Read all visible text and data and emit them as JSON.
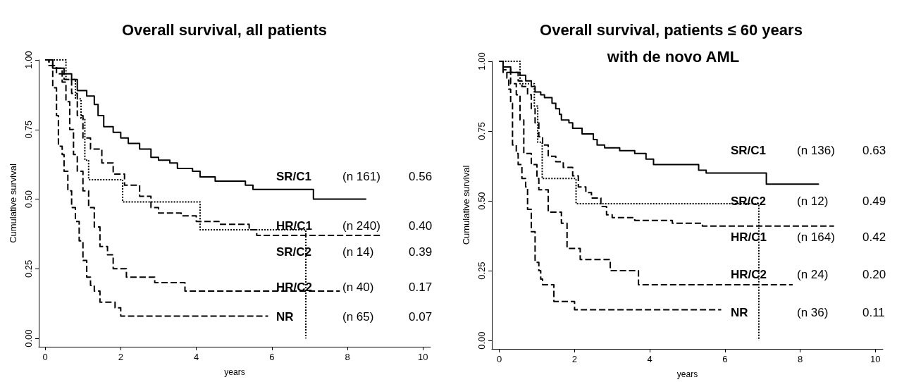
{
  "chart_data": [
    {
      "type": "step",
      "title": "Overall survival, all patients",
      "xlabel": "years",
      "ylabel": "Cumulative survival",
      "xlim": [
        -0.17,
        10.2
      ],
      "ylim": [
        -0.03,
        1.0
      ],
      "xticks": [
        0,
        2,
        4,
        6,
        8,
        10
      ],
      "yticks": [
        {
          "value": 0,
          "label": "0.00"
        },
        {
          "value": 0.25,
          "label": "0.25"
        },
        {
          "value": 0.5,
          "label": "0.50"
        },
        {
          "value": 0.75,
          "label": "0.75"
        },
        {
          "value": 1,
          "label": "1.00"
        }
      ],
      "grid": false,
      "legend": false,
      "marker": "none",
      "series": [
        {
          "name": "SR/C1",
          "color": "#000000",
          "line_style": "solid",
          "x": [
            0,
            0.2,
            0.5,
            0.7,
            0.85,
            1.1,
            1.3,
            1.4,
            1.55,
            1.8,
            2.0,
            2.2,
            2.5,
            2.8,
            3.0,
            3.3,
            3.5,
            3.9,
            4.1,
            4.5,
            5.3,
            5.5,
            7.1,
            8.5
          ],
          "values": [
            1,
            0.97,
            0.95,
            0.93,
            0.89,
            0.87,
            0.84,
            0.8,
            0.76,
            0.74,
            0.72,
            0.7,
            0.68,
            0.65,
            0.64,
            0.63,
            0.61,
            0.6,
            0.58,
            0.565,
            0.55,
            0.535,
            0.5,
            0.5
          ]
        },
        {
          "name": "HR/C1",
          "color": "#000000",
          "line_style": "dashed",
          "x": [
            0,
            0.1,
            0.3,
            0.5,
            0.7,
            0.85,
            1.0,
            1.2,
            1.5,
            1.8,
            2.1,
            2.5,
            2.8,
            3.0,
            3.6,
            4.0,
            4.6,
            5.4,
            5.6,
            8.9
          ],
          "values": [
            1,
            0.98,
            0.95,
            0.93,
            0.88,
            0.8,
            0.72,
            0.68,
            0.63,
            0.59,
            0.55,
            0.51,
            0.47,
            0.45,
            0.44,
            0.42,
            0.41,
            0.39,
            0.37,
            0.37
          ]
        },
        {
          "name": "SR/C2",
          "color": "#000000",
          "line_style": "dotted",
          "x": [
            0,
            0.55,
            0.8,
            0.95,
            1.05,
            1.15,
            2.05,
            4.1,
            6.9
          ],
          "values": [
            1,
            0.93,
            0.86,
            0.79,
            0.64,
            0.57,
            0.49,
            0.39,
            0
          ]
        },
        {
          "name": "HR/C2",
          "color": "#000000",
          "line_style": "dashed",
          "x": [
            0,
            0.2,
            0.45,
            0.55,
            0.65,
            0.75,
            0.85,
            1.0,
            1.15,
            1.3,
            1.45,
            1.65,
            1.8,
            2.15,
            2.9,
            3.7,
            7.8
          ],
          "values": [
            1,
            0.97,
            0.92,
            0.85,
            0.75,
            0.66,
            0.6,
            0.53,
            0.47,
            0.4,
            0.33,
            0.3,
            0.25,
            0.22,
            0.2,
            0.17,
            0.17
          ]
        },
        {
          "name": "NR",
          "color": "#000000",
          "line_style": "dashed",
          "x": [
            0,
            0.1,
            0.2,
            0.3,
            0.35,
            0.45,
            0.5,
            0.6,
            0.7,
            0.8,
            0.9,
            1.0,
            1.1,
            1.2,
            1.3,
            1.45,
            1.85,
            2.0,
            5.9
          ],
          "values": [
            1,
            0.98,
            0.9,
            0.8,
            0.69,
            0.66,
            0.6,
            0.53,
            0.47,
            0.42,
            0.35,
            0.28,
            0.22,
            0.19,
            0.17,
            0.13,
            0.11,
            0.08,
            0.08
          ]
        }
      ],
      "annotations": [
        "(n 161)",
        "0.56",
        "(n 240)",
        "0.40",
        "(n 14)",
        "0.39",
        "(n 40)",
        "0.17",
        "(n 65)",
        "0.07"
      ]
    },
    {
      "type": "step",
      "title": "Overall survival, patients ≤ 60 years with de novo AML",
      "xlabel": "years",
      "ylabel": "Cumulative survival",
      "xlim": [
        -0.2,
        10.2
      ],
      "ylim": [
        -0.03,
        1.0
      ],
      "xticks": [
        0,
        2,
        4,
        6,
        8,
        10
      ],
      "yticks": [
        {
          "value": 0,
          "label": "0.00"
        },
        {
          "value": 0.25,
          "label": "0.25"
        },
        {
          "value": 0.5,
          "label": "0.50"
        },
        {
          "value": 0.75,
          "label": "0.75"
        },
        {
          "value": 1,
          "label": "1.00"
        }
      ],
      "grid": false,
      "legend": false,
      "marker": "none",
      "series": [
        {
          "name": "SR/C1",
          "color": "#000000",
          "line_style": "solid",
          "x": [
            0,
            0.1,
            0.3,
            0.55,
            0.7,
            0.85,
            0.95,
            1.1,
            1.2,
            1.4,
            1.5,
            1.6,
            1.65,
            1.85,
            1.95,
            2.2,
            2.5,
            2.6,
            2.8,
            3.2,
            3.6,
            3.9,
            4.1,
            5.3,
            5.5,
            7.1,
            8.5
          ],
          "values": [
            1,
            0.98,
            0.96,
            0.95,
            0.93,
            0.91,
            0.89,
            0.88,
            0.87,
            0.85,
            0.83,
            0.81,
            0.79,
            0.78,
            0.76,
            0.74,
            0.72,
            0.7,
            0.69,
            0.68,
            0.67,
            0.65,
            0.63,
            0.61,
            0.6,
            0.56,
            0.56
          ]
        },
        {
          "name": "SR/C2",
          "color": "#000000",
          "line_style": "dotted",
          "x": [
            0,
            0.55,
            0.93,
            1.02,
            1.14,
            2.04,
            6.9
          ],
          "values": [
            1,
            0.92,
            0.84,
            0.71,
            0.58,
            0.49,
            0
          ]
        },
        {
          "name": "HR/C1",
          "color": "#000000",
          "line_style": "dashed",
          "x": [
            0,
            0.1,
            0.3,
            0.5,
            0.6,
            0.75,
            0.85,
            0.95,
            1.05,
            1.15,
            1.3,
            1.5,
            1.7,
            1.95,
            2.1,
            2.3,
            2.45,
            2.7,
            2.85,
            3.0,
            3.6,
            4.6,
            5.4,
            8.9
          ],
          "values": [
            1,
            0.98,
            0.96,
            0.93,
            0.91,
            0.88,
            0.83,
            0.78,
            0.73,
            0.7,
            0.66,
            0.64,
            0.62,
            0.59,
            0.55,
            0.53,
            0.51,
            0.48,
            0.45,
            0.44,
            0.43,
            0.42,
            0.41,
            0.41
          ]
        },
        {
          "name": "HR/C2",
          "color": "#000000",
          "line_style": "dashed",
          "x": [
            0,
            0.1,
            0.3,
            0.45,
            0.55,
            0.65,
            0.85,
            1.0,
            1.05,
            1.3,
            1.65,
            1.8,
            2.15,
            2.95,
            3.7,
            7.8
          ],
          "values": [
            1,
            0.96,
            0.92,
            0.88,
            0.79,
            0.67,
            0.63,
            0.58,
            0.54,
            0.46,
            0.42,
            0.33,
            0.29,
            0.25,
            0.2,
            0.2
          ]
        },
        {
          "name": "NR",
          "color": "#000000",
          "line_style": "dashed",
          "x": [
            0,
            0.1,
            0.2,
            0.25,
            0.3,
            0.35,
            0.45,
            0.5,
            0.6,
            0.7,
            0.75,
            0.85,
            0.95,
            1.05,
            1.1,
            1.15,
            1.45,
            2.0,
            5.9
          ],
          "values": [
            1,
            0.97,
            0.94,
            0.9,
            0.85,
            0.7,
            0.67,
            0.63,
            0.58,
            0.55,
            0.47,
            0.39,
            0.28,
            0.25,
            0.22,
            0.2,
            0.14,
            0.11,
            0.11
          ]
        }
      ],
      "annotations": [
        "(n 136)",
        "0.63",
        "(n 12)",
        "0.49",
        "(n 164)",
        "0.42",
        "(n 24)",
        "0.20",
        "(n 36)",
        "0.11"
      ]
    }
  ]
}
